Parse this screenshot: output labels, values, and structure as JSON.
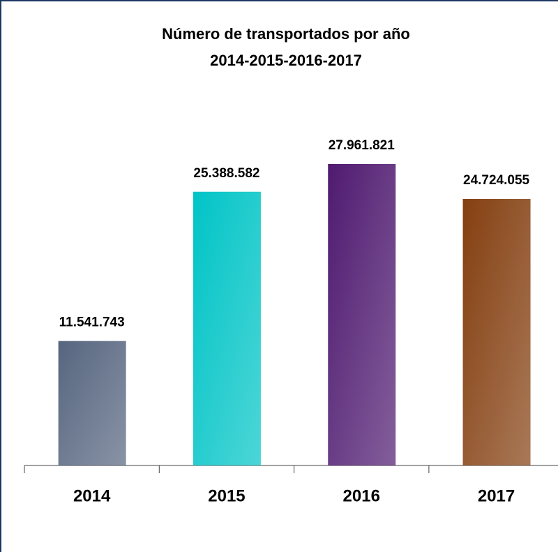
{
  "chart_data": {
    "type": "bar",
    "title": "Número de transportados por año",
    "subtitle": "2014-2015-2016-2017",
    "categories": [
      "2014",
      "2015",
      "2016",
      "2017"
    ],
    "values": [
      11541743,
      25388582,
      27961821,
      24724055
    ],
    "value_labels": [
      "11.541.743",
      "25.388.582",
      "27.961.821",
      "24.724.055"
    ],
    "colors": [
      "#56657f",
      "#00c4c6",
      "#4f1a70",
      "#843f10"
    ]
  }
}
